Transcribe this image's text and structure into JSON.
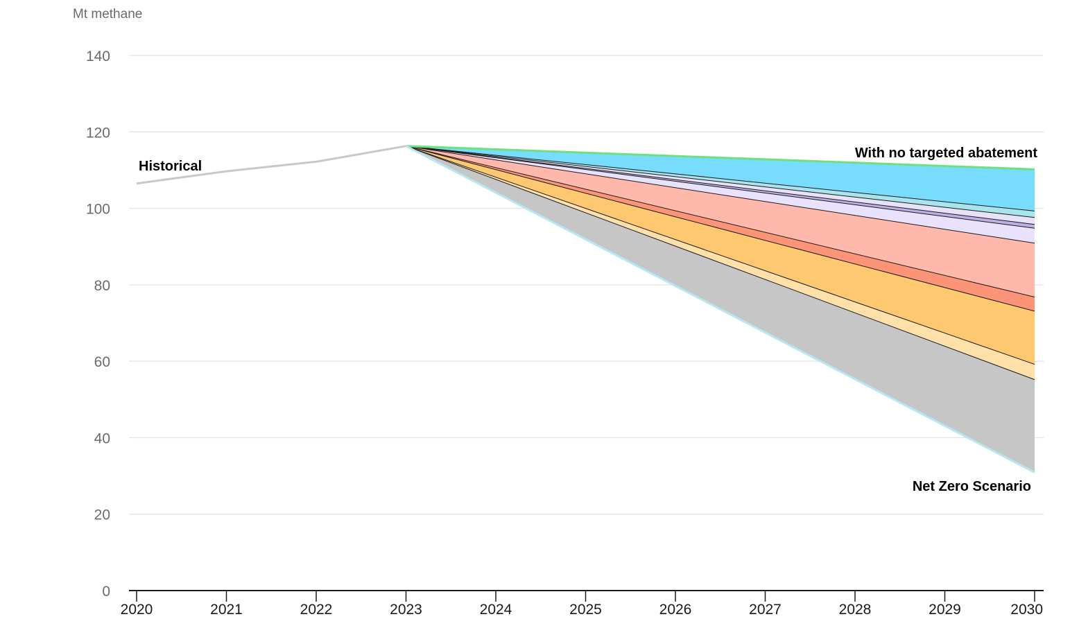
{
  "chart_data": {
    "type": "area",
    "ylabel": "Mt methane",
    "ylim": [
      0,
      140
    ],
    "yticks": [
      0,
      20,
      40,
      60,
      80,
      100,
      120,
      140
    ],
    "x": [
      2020,
      2021,
      2022,
      2023,
      2024,
      2025,
      2026,
      2027,
      2028,
      2029,
      2030
    ],
    "xlim": [
      2020,
      2030
    ],
    "grid": true,
    "historical": {
      "label": "Historical",
      "color": "#c8c8c8",
      "x": [
        2020,
        2021,
        2022,
        2023
      ],
      "y": [
        106.5,
        109.7,
        112.2,
        116.3
      ]
    },
    "wedge": {
      "start_year": 2023,
      "start_value": 116.3,
      "end_year": 2030,
      "boundaries_2030": [
        110.2,
        99.3,
        97.6,
        95.8,
        94.8,
        90.9,
        76.8,
        73.1,
        59.2,
        55.2,
        30.9
      ],
      "fill_colors": [
        "#78dcfc",
        "#a8e4ee",
        "#e8e2f6",
        "#bdaee6",
        "#e8e2fc",
        "#feb8ac",
        "#fc9478",
        "#fec870",
        "#fee0a8",
        "#c6c6c6"
      ]
    },
    "upper_line": {
      "label": "With no targeted abatement",
      "color": "#6de07f"
    },
    "lower_line": {
      "label": "Net Zero Scenario",
      "color": "#b5e8f2"
    }
  }
}
